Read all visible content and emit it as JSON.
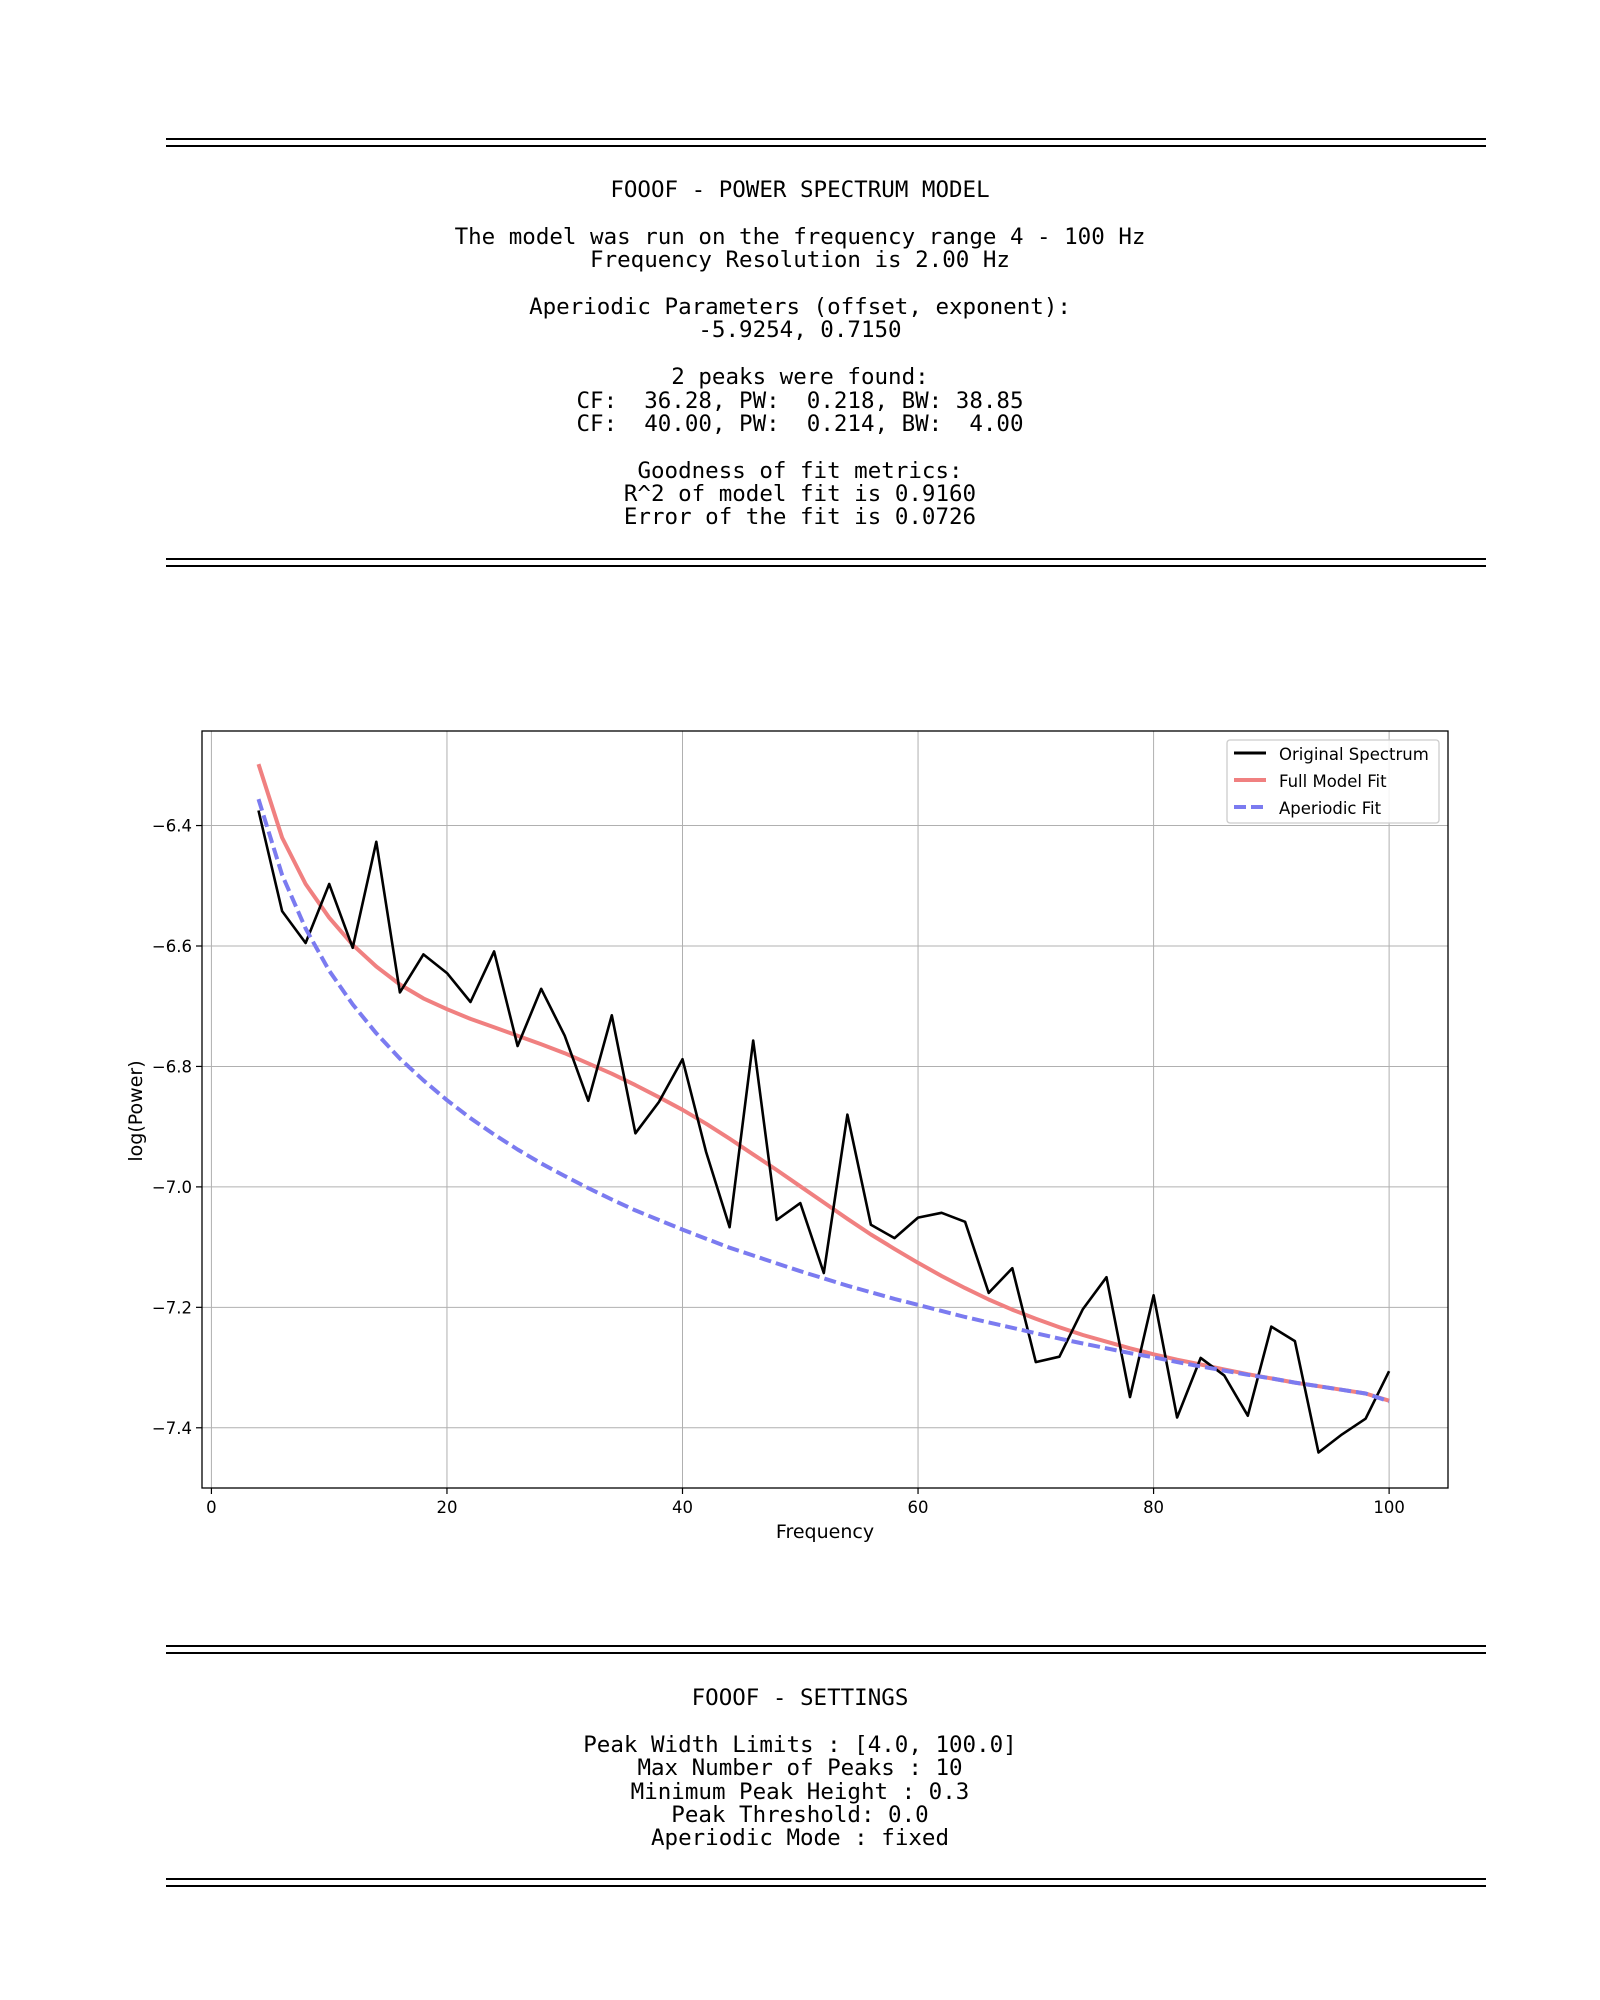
{
  "report": {
    "title": "FOOOF - POWER SPECTRUM MODEL",
    "range_line": "The model was run on the frequency range 4 - 100 Hz",
    "resolution_line": "Frequency Resolution is 2.00 Hz",
    "aperiodic_header": "Aperiodic Parameters (offset, exponent):",
    "aperiodic_values": "-5.9254, 0.7150",
    "peaks_header": "2 peaks were found:",
    "peak_lines": [
      "CF:  36.28, PW:  0.218, BW: 38.85",
      "CF:  40.00, PW:  0.214, BW:  4.00"
    ],
    "gof_header": "Goodness of fit metrics:",
    "r2_line": "R^2 of model fit is 0.9160",
    "error_line": "Error of the fit is 0.0726"
  },
  "settings": {
    "title": "FOOOF - SETTINGS",
    "lines": [
      "Peak Width Limits : [4.0, 100.0]",
      "Max Number of Peaks : 10",
      "Minimum Peak Height : 0.3",
      "Peak Threshold: 0.0",
      "Aperiodic Mode : fixed"
    ]
  },
  "chart_data": {
    "type": "line",
    "title": "",
    "xlabel": "Frequency",
    "ylabel": "log(Power)",
    "xlim": [
      -0.8,
      105
    ],
    "ylim": [
      -7.5,
      -6.243
    ],
    "xticks": [
      0,
      20,
      40,
      60,
      80,
      100
    ],
    "yticks": [
      -6.4,
      -6.6,
      -6.8,
      -7.0,
      -7.2,
      -7.4
    ],
    "xtick_labels": [
      "0",
      "20",
      "40",
      "60",
      "80",
      "100"
    ],
    "ytick_labels": [
      "−6.4",
      "−6.6",
      "−6.8",
      "−7.0",
      "−7.2",
      "−7.4"
    ],
    "grid": true,
    "legend_position": "top-right",
    "x": [
      4,
      6,
      8,
      10,
      12,
      14,
      16,
      18,
      20,
      22,
      24,
      26,
      28,
      30,
      32,
      34,
      36,
      38,
      40,
      42,
      44,
      46,
      48,
      50,
      52,
      54,
      56,
      58,
      60,
      62,
      64,
      66,
      68,
      70,
      72,
      74,
      76,
      78,
      80,
      82,
      84,
      86,
      88,
      90,
      92,
      94,
      96,
      98,
      100
    ],
    "series": [
      {
        "name": "Original Spectrum",
        "color": "#000000",
        "style": "solid",
        "values": [
          -6.375,
          -6.542,
          -6.595,
          -6.497,
          -6.603,
          -6.427,
          -6.677,
          -6.614,
          -6.645,
          -6.693,
          -6.609,
          -6.766,
          -6.671,
          -6.749,
          -6.857,
          -6.715,
          -6.911,
          -6.859,
          -6.788,
          -6.942,
          -7.067,
          -6.757,
          -7.055,
          -7.027,
          -7.143,
          -6.88,
          -7.063,
          -7.085,
          -7.051,
          -7.043,
          -7.058,
          -7.176,
          -7.135,
          -7.291,
          -7.282,
          -7.203,
          -7.15,
          -7.349,
          -7.18,
          -7.383,
          -7.284,
          -7.313,
          -7.38,
          -7.232,
          -7.256,
          -7.441,
          -7.411,
          -7.385,
          -7.306
        ]
      },
      {
        "name": "Full Model Fit",
        "color": "#f08080",
        "style": "solid",
        "values": [
          -6.298,
          -6.42,
          -6.497,
          -6.553,
          -6.598,
          -6.634,
          -6.664,
          -6.687,
          -6.705,
          -6.721,
          -6.735,
          -6.749,
          -6.763,
          -6.778,
          -6.795,
          -6.812,
          -6.831,
          -6.851,
          -6.872,
          -6.895,
          -6.92,
          -6.946,
          -6.972,
          -6.999,
          -7.026,
          -7.053,
          -7.079,
          -7.103,
          -7.126,
          -7.148,
          -7.168,
          -7.187,
          -7.204,
          -7.219,
          -7.233,
          -7.246,
          -7.257,
          -7.268,
          -7.278,
          -7.287,
          -7.295,
          -7.303,
          -7.311,
          -7.318,
          -7.325,
          -7.331,
          -7.337,
          -7.343,
          -7.355
        ]
      },
      {
        "name": "Aperiodic Fit",
        "color": "#7b7bf0",
        "style": "dashed",
        "values": [
          -6.356,
          -6.482,
          -6.571,
          -6.641,
          -6.697,
          -6.745,
          -6.787,
          -6.823,
          -6.856,
          -6.886,
          -6.913,
          -6.938,
          -6.961,
          -6.982,
          -7.002,
          -7.021,
          -7.039,
          -7.055,
          -7.071,
          -7.086,
          -7.101,
          -7.114,
          -7.127,
          -7.14,
          -7.152,
          -7.164,
          -7.175,
          -7.186,
          -7.196,
          -7.206,
          -7.216,
          -7.225,
          -7.234,
          -7.243,
          -7.252,
          -7.26,
          -7.268,
          -7.276,
          -7.283,
          -7.291,
          -7.298,
          -7.305,
          -7.312,
          -7.318,
          -7.325,
          -7.331,
          -7.337,
          -7.343,
          -7.356
        ]
      }
    ]
  }
}
